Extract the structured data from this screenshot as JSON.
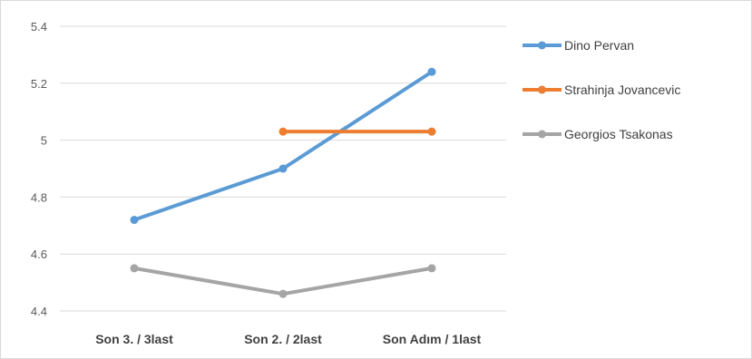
{
  "chart_data": {
    "type": "line",
    "categories": [
      "Son 3. / 3last",
      "Son 2. / 2last",
      "Son Adım / 1last"
    ],
    "series": [
      {
        "name": "Dino Pervan",
        "values": [
          4.72,
          4.9,
          5.24
        ],
        "color": "#5b9bd5"
      },
      {
        "name": "Strahinja Jovancevic",
        "values": [
          null,
          5.03,
          5.03
        ],
        "color": "#ed7d31"
      },
      {
        "name": "Georgios Tsakonas",
        "values": [
          4.55,
          4.46,
          4.55
        ],
        "color": "#a5a5a5"
      }
    ],
    "y_ticks": [
      "5.4",
      "5.2",
      "5",
      "4.8",
      "4.6",
      "4.4"
    ],
    "ylim": [
      4.4,
      5.4
    ],
    "grid": true,
    "legend_position": "right"
  }
}
